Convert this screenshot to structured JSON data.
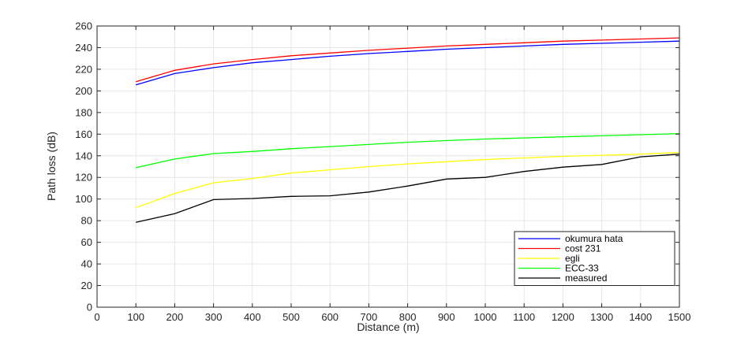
{
  "chart_data": {
    "type": "line",
    "title": "",
    "xlabel": "Distance (m)",
    "ylabel": "Path loss (dB)",
    "xlim": [
      0,
      1500
    ],
    "ylim": [
      0,
      260
    ],
    "xticks": [
      0,
      100,
      200,
      300,
      400,
      500,
      600,
      700,
      800,
      900,
      1000,
      1100,
      1200,
      1300,
      1400,
      1500
    ],
    "yticks": [
      0,
      20,
      40,
      60,
      80,
      100,
      120,
      140,
      160,
      180,
      200,
      220,
      240,
      260
    ],
    "grid": true,
    "legend_position": "bottom-right",
    "x": [
      100,
      200,
      300,
      400,
      500,
      600,
      700,
      800,
      900,
      1000,
      1100,
      1200,
      1300,
      1400,
      1500
    ],
    "series": [
      {
        "name": "okumura hata",
        "color": "#0000ff",
        "values": [
          205.5,
          216,
          221.5,
          226,
          229,
          232,
          234.5,
          236.5,
          238.5,
          240,
          241.5,
          243,
          244,
          245,
          246
        ]
      },
      {
        "name": "cost 231",
        "color": "#ff0000",
        "values": [
          208.5,
          219,
          225,
          229,
          232.5,
          235,
          237.5,
          239.5,
          241.5,
          243,
          244.5,
          246,
          247,
          248,
          249
        ]
      },
      {
        "name": "egli",
        "color": "#ffff00",
        "values": [
          92,
          105,
          115,
          119,
          124,
          127,
          130,
          132.5,
          134.5,
          136.5,
          138,
          139.5,
          140.5,
          141.5,
          143
        ]
      },
      {
        "name": "ECC-33",
        "color": "#00ff00",
        "values": [
          129,
          137,
          142,
          144,
          146.5,
          148.5,
          150.5,
          152.5,
          154,
          155.5,
          156.5,
          157.5,
          158.5,
          159.5,
          160.5
        ]
      },
      {
        "name": "measured",
        "color": "#000000",
        "values": [
          78.5,
          86.5,
          99.5,
          100.5,
          102.5,
          103,
          106.5,
          112,
          118.5,
          120,
          125.5,
          129.5,
          132,
          139,
          141.5
        ]
      }
    ]
  }
}
